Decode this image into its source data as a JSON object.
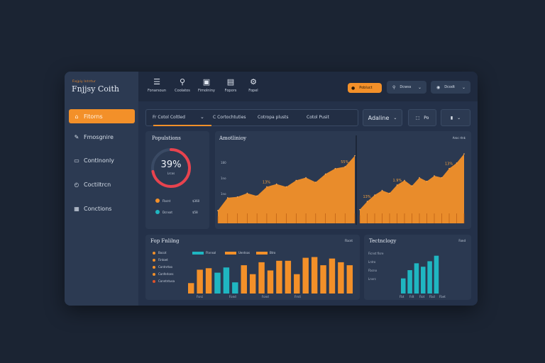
{
  "app": {
    "brand_tag": "Fiejpiy Intrrtur",
    "title": "Fnjjsy Coith"
  },
  "sidebar": {
    "items": [
      {
        "label": "Fitorns",
        "icon": "home-icon",
        "active": true
      },
      {
        "label": "Fmosgnire",
        "icon": "pen-icon",
        "active": false
      },
      {
        "label": "Contlnonly",
        "icon": "folder-icon",
        "active": false
      },
      {
        "label": "Coctiltrcn",
        "icon": "clock-icon",
        "active": false
      },
      {
        "label": "Conctions",
        "icon": "grid-icon",
        "active": false
      }
    ]
  },
  "toolbar": {
    "tools": [
      {
        "label": "Fonarsoun",
        "icon": "layers-icon"
      },
      {
        "label": "Coolatos",
        "icon": "bookmark-icon"
      },
      {
        "label": "Fimolniny",
        "icon": "image-icon"
      },
      {
        "label": "Fopors",
        "icon": "document-icon"
      },
      {
        "label": "Fopel",
        "icon": "gear-icon"
      }
    ],
    "orange_pill": "Pobluct",
    "account": "Dcwss",
    "settings": "Dcodt"
  },
  "filters": {
    "items": [
      "Fr Cotol Coltled",
      "C Cortochtuties",
      "Cotropa plusts",
      "Cotol Pusit"
    ],
    "adaline_button": "Adaline",
    "export_label": "Po"
  },
  "population": {
    "title": "Populstions",
    "percent": "39%",
    "sub": "Lrcos",
    "gauge_value": 0.72,
    "legend": [
      {
        "label": "Fbcnt",
        "value": "$360",
        "color": "#f39029"
      },
      {
        "label": "Dcnsot",
        "value": "$58",
        "color": "#1fb6c1"
      }
    ]
  },
  "analytics": {
    "title": "Amotlinioy",
    "corner": "Aroc rtnk",
    "chart_data": [
      {
        "type": "area",
        "title": "",
        "yticks": [
          "180",
          "1no",
          "1no"
        ],
        "values": [
          14,
          28,
          29,
          33,
          30,
          40,
          43,
          40,
          47,
          50,
          45,
          54,
          60,
          62,
          74
        ],
        "ylim": [
          0,
          90
        ],
        "annotations": [
          {
            "index": 5,
            "label": "13%"
          },
          {
            "index": 13,
            "label": "55%"
          }
        ],
        "color": "#f39029"
      },
      {
        "type": "area",
        "title": "",
        "values": [
          15,
          24,
          31,
          36,
          33,
          42,
          47,
          41,
          50,
          46,
          52,
          50,
          60,
          66,
          76
        ],
        "ylim": [
          0,
          90
        ],
        "annotations": [
          {
            "index": 1,
            "label": "13%"
          },
          {
            "index": 5,
            "label": "1.9%"
          },
          {
            "index": 12,
            "label": "13%"
          }
        ],
        "color": "#f39029"
      }
    ]
  },
  "fop": {
    "title": "Fop Fnlilng",
    "corner": "Fbcnt",
    "legend": [
      {
        "label": "Bocot",
        "color": "#f39029"
      },
      {
        "label": "Fintoet",
        "color": "#f39029"
      },
      {
        "label": "Contnrtoo",
        "color": "#f39029"
      },
      {
        "label": "Conferlons",
        "color": "#f39029"
      },
      {
        "label": "Conntntusa",
        "color": "#e0522a"
      }
    ],
    "series_legend": [
      {
        "label": "Ftvnsol",
        "color": "#1fb6c1"
      },
      {
        "label": "Uentsos",
        "color": "#f39029"
      },
      {
        "label": "Btro",
        "color": "#f39029"
      }
    ],
    "chart_data": {
      "type": "bar",
      "series_colors": [
        "#f39029",
        "#1fb6c1"
      ],
      "values": [
        14,
        32,
        34,
        28,
        35,
        15,
        38,
        26,
        42,
        31,
        44,
        44,
        26,
        48,
        49,
        38,
        47,
        42,
        38
      ],
      "colors": [
        0,
        0,
        0,
        1,
        1,
        1,
        0,
        0,
        0,
        0,
        0,
        0,
        0,
        0,
        0,
        0,
        0,
        0,
        0
      ],
      "xticks": [
        "Fsrci",
        "Fond",
        "Fond",
        "Frrct"
      ],
      "ylim": [
        0,
        60
      ]
    }
  },
  "technology": {
    "title": "Tectnclogy",
    "corner": "Fond",
    "chart_data": {
      "type": "bar",
      "yticks": [
        "Ficnst fisre",
        "Lntro",
        "Fbcno",
        "Lnvrc"
      ],
      "values": [
        22,
        34,
        44,
        39,
        47,
        55
      ],
      "colors": [
        "#1fb6c1",
        "#1fb6c1",
        "#1fb6c1",
        "#1fb6c1",
        "#1fb6c1",
        "#1fb6c1"
      ],
      "xticks": [
        "Fbt",
        "Fdt",
        "Fiot",
        "Fbcl",
        "Fbet"
      ],
      "ylim": [
        0,
        65
      ]
    }
  }
}
